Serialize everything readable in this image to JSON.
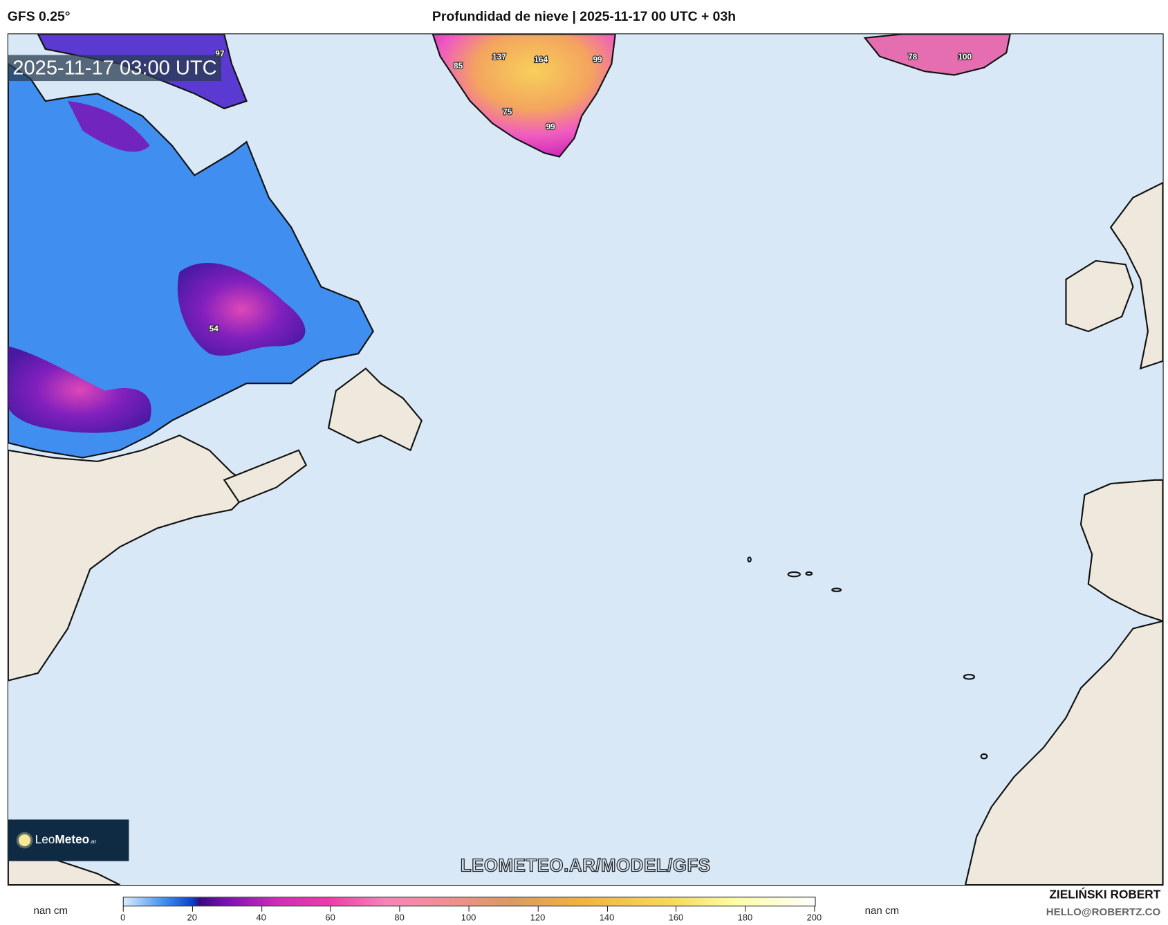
{
  "header": {
    "model": "GFS 0.25°",
    "title": "Profundidad de nieve | 2025-11-17 00 UTC + 03h"
  },
  "map": {
    "valid_time": "2025-11-17 03:00 UTC",
    "watermark": "LEOMETEO.AR/MODEL/GFS",
    "logo": {
      "light": "Leo",
      "bold": "Meteo",
      "suffix": ".ar"
    },
    "value_labels": [
      "54",
      "85",
      "137",
      "164",
      "99",
      "75",
      "99",
      "78",
      "100",
      "97"
    ],
    "colors": {
      "ocean": "#d9e8f7",
      "land": "#efe8dc"
    }
  },
  "colorbar": {
    "unit_left": "nan cm",
    "unit_right": "nan cm",
    "ticks": [
      "0",
      "20",
      "40",
      "60",
      "80",
      "100",
      "120",
      "140",
      "160",
      "180",
      "200"
    ],
    "range": [
      0,
      200
    ]
  },
  "credits": {
    "author": "ZIELIŃSKI ROBERT",
    "email": "HELLO@ROBERTZ.CO"
  }
}
